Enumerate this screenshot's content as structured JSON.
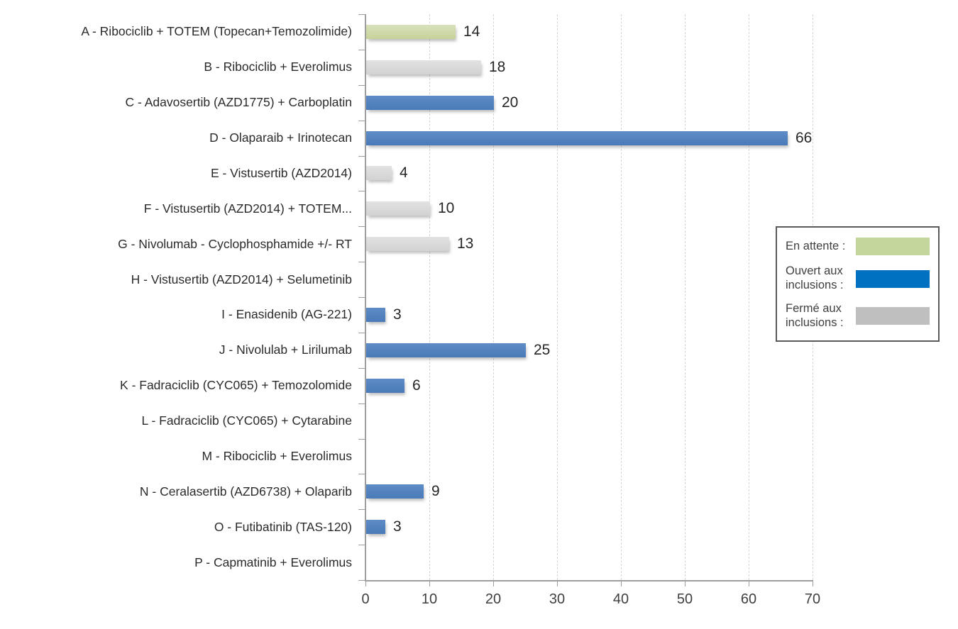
{
  "chart_data": {
    "type": "bar",
    "orientation": "horizontal",
    "categories": [
      "A - Ribociclib + TOTEM (Topecan+Temozolimide)",
      "B - Ribociclib + Everolimus",
      "C - Adavosertib (AZD1775) + Carboplatin",
      "D - Olaparaib + Irinotecan",
      "E - Vistusertib (AZD2014)",
      "F - Vistusertib (AZD2014) + TOTEM...",
      "G - Nivolumab - Cyclophosphamide +/- RT",
      "H - Vistusertib (AZD2014) + Selumetinib",
      "I - Enasidenib (AG-221)",
      "J - Nivolulab + Lirilumab",
      "K - Fadraciclib (CYC065) + Temozolomide",
      "L - Fadraciclib (CYC065) + Cytarabine",
      "M - Ribociclib + Everolimus",
      "N - Ceralasertib (AZD6738) + Olaparib",
      "O - Futibatinib (TAS-120)",
      "P - Capmatinib + Everolimus"
    ],
    "values": [
      14,
      18,
      20,
      66,
      4,
      10,
      13,
      0,
      3,
      25,
      6,
      0,
      0,
      9,
      3,
      0
    ],
    "statuses": [
      "en_attente",
      "ferme",
      "ouvert",
      "ouvert",
      "ferme",
      "ferme",
      "ferme",
      null,
      "ouvert",
      "ouvert",
      "ouvert",
      null,
      null,
      "ouvert",
      "ouvert",
      null
    ],
    "x_ticks": [
      0,
      10,
      20,
      30,
      40,
      50,
      60,
      70
    ],
    "xlim": [
      0,
      70
    ],
    "grid": "vertical-dashed",
    "legend_position": "right",
    "title": "",
    "xlabel": "",
    "ylabel": ""
  },
  "legend": {
    "items": [
      {
        "key": "en_attente",
        "label": "En attente :",
        "color": "#c3d69b"
      },
      {
        "key": "ouvert",
        "label": "Ouvert aux inclusions :",
        "color": "#0070c0"
      },
      {
        "key": "ferme",
        "label": "Fermé aux inclusions :",
        "color": "#bfbfbf"
      }
    ]
  },
  "colors": {
    "bar_en_attente": "#ccd8a4",
    "bar_ouvert": "#4f81bd",
    "bar_ferme": "#d9d9d9",
    "axis": "#9e9e9e",
    "gridline": "#d6d6d6",
    "text": "#262626"
  }
}
